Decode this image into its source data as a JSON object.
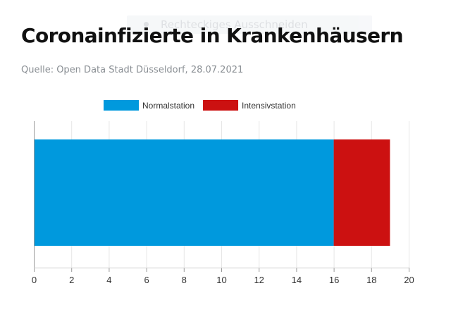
{
  "header": {
    "ghost_label": "Rechteckiges Ausschneiden",
    "title": "Coronainfizierte in Krankenhäusern",
    "source": "Quelle: Open Data Stadt Düsseldorf, 28.07.2021"
  },
  "chart_data": {
    "type": "bar",
    "orientation": "horizontal",
    "stacked": true,
    "categories": [
      ""
    ],
    "series": [
      {
        "name": "Normalstation",
        "values": [
          16
        ],
        "color": "#0099dd"
      },
      {
        "name": "Intensivstation",
        "values": [
          3
        ],
        "color": "#cc1111"
      }
    ],
    "xlim": [
      0,
      20
    ],
    "xticks": [
      0,
      2,
      4,
      6,
      8,
      10,
      12,
      14,
      16,
      18,
      20
    ],
    "grid": true,
    "legend_position": "top-center"
  }
}
